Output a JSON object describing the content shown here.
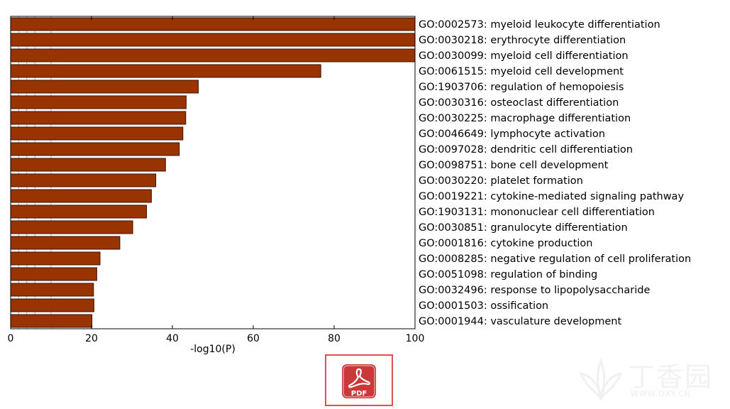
{
  "chart_data": {
    "type": "bar",
    "orientation": "horizontal",
    "categories": [
      "GO:0002573: myeloid leukocyte differentiation",
      "GO:0030218: erythrocyte differentiation",
      "GO:0030099: myeloid cell differentiation",
      "GO:0061515: myeloid cell development",
      "GO:1903706: regulation of hemopoiesis",
      "GO:0030316: osteoclast differentiation",
      "GO:0030225: macrophage differentiation",
      "GO:0046649: lymphocyte activation",
      "GO:0097028: dendritic cell differentiation",
      "GO:0098751: bone cell development",
      "GO:0030220: platelet formation",
      "GO:0019221: cytokine-mediated signaling pathway",
      "GO:1903131: mononuclear cell differentiation",
      "GO:0030851: granulocyte differentiation",
      "GO:0001816: cytokine production",
      "GO:0008285: negative regulation of cell proliferation",
      "GO:0051098: regulation of binding",
      "GO:0032496: response to lipopolysaccharide",
      "GO:0001503: ossification",
      "GO:0001944: vasculature development"
    ],
    "values": [
      100,
      100,
      100,
      76.7,
      46.4,
      43.4,
      43.3,
      42.6,
      41.7,
      38.3,
      35.9,
      34.8,
      33.6,
      30.2,
      27.0,
      22.1,
      21.3,
      20.5,
      20.6,
      20.1
    ],
    "xlabel": "-log10(P)",
    "xlim": [
      0,
      100
    ],
    "xticks": [
      0,
      20,
      40,
      60,
      80,
      100
    ],
    "minor_gridlines": [
      2,
      4,
      6,
      10
    ],
    "bar_color": "#993300",
    "bar_edge_color": "#3a1200"
  },
  "pdf_badge": {
    "label": "PDF",
    "color": "#c9393a"
  },
  "watermark": {
    "text": "丁香园",
    "url": "WWW.DXY.CN"
  }
}
